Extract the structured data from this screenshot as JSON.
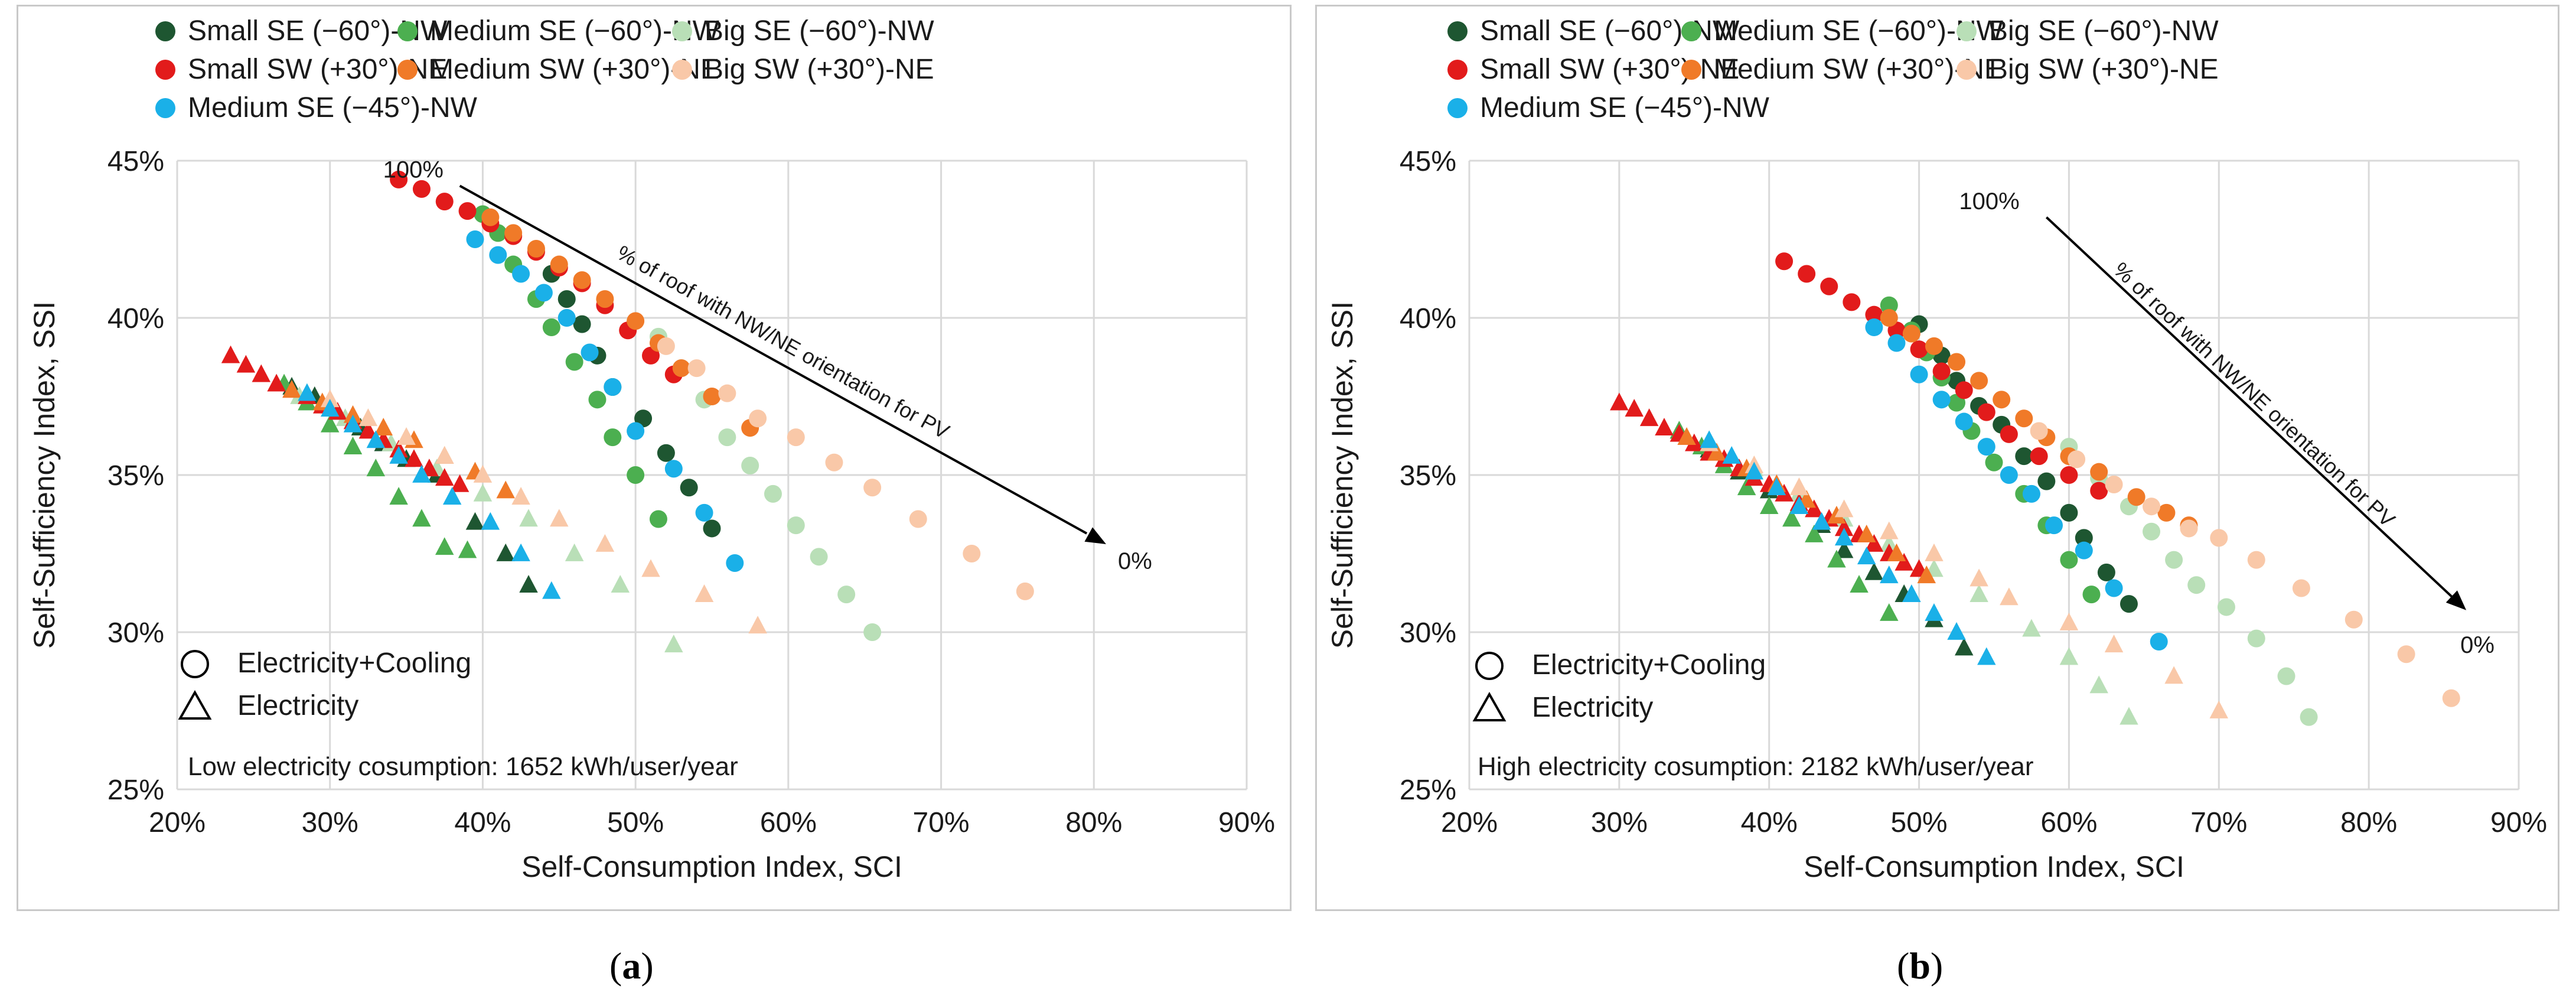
{
  "colors": {
    "small_se_60": "#1e5631",
    "medium_se_60": "#4caf50",
    "big_se_60": "#b9dfb7",
    "small_sw_30": "#e21b1b",
    "medium_sw_30": "#f07a28",
    "big_sw_30": "#f9c8a8",
    "medium_se_45": "#1ab0e8",
    "grid": "#d9d9d9",
    "text": "#1a1a1a"
  },
  "legend_items": [
    {
      "key": "small_se_60",
      "label": "Small SE (−60°)-NW"
    },
    {
      "key": "medium_se_60",
      "label": "Medium SE (−60°)-NW"
    },
    {
      "key": "big_se_60",
      "label": "Big SE (−60°)-NW"
    },
    {
      "key": "small_sw_30",
      "label": "Small SW (+30°)-NE"
    },
    {
      "key": "medium_sw_30",
      "label": "Medium SW (+30°)-NE"
    },
    {
      "key": "big_sw_30",
      "label": "Big SW (+30°)-NE"
    },
    {
      "key": "medium_se_45",
      "label": "Medium SE (−45°)-NW"
    }
  ],
  "marker_legend": [
    {
      "shape": "circle",
      "label": "Electricity+Cooling"
    },
    {
      "shape": "triangle",
      "label": "Electricity"
    }
  ],
  "chart_data": [
    {
      "type": "scatter",
      "id": "a",
      "caption": "a",
      "xlabel": "Self-Consumption Index, SCI",
      "ylabel": "Self-Sufficiency Index, SSI",
      "xlim": [
        20,
        90
      ],
      "ylim": [
        25,
        45
      ],
      "xticks": [
        20,
        30,
        40,
        50,
        60,
        70,
        80,
        90
      ],
      "yticks": [
        25,
        30,
        35,
        40,
        45
      ],
      "x_tick_labels": [
        "20%",
        "30%",
        "40%",
        "50%",
        "60%",
        "70%",
        "80%",
        "90%"
      ],
      "y_tick_labels": [
        "25%",
        "30%",
        "35%",
        "40%",
        "45%"
      ],
      "grid": true,
      "note": "Low electricity cosumption: 1652 kWh/user/year",
      "arrow": {
        "start_label": "100%",
        "end_label": "0%",
        "text": "% of roof with NW/NE orientation for PV",
        "start": [
          38.5,
          44.2
        ],
        "end": [
          80.8,
          32.8
        ]
      },
      "series": [
        {
          "key": "small_se_60",
          "marker": "circle",
          "x": [
            44.5,
            45.5,
            46.5,
            47.5,
            48.5,
            50.5,
            52,
            53.5,
            55
          ],
          "y": [
            41.4,
            40.6,
            39.8,
            38.8,
            37.8,
            36.8,
            35.7,
            34.6,
            33.3
          ]
        },
        {
          "key": "medium_se_60",
          "marker": "circle",
          "x": [
            40,
            41,
            42,
            43.5,
            44.5,
            46,
            47.5,
            48.5,
            50,
            51.5
          ],
          "y": [
            43.3,
            42.7,
            41.7,
            40.6,
            39.7,
            38.6,
            37.4,
            36.2,
            35,
            33.6
          ]
        },
        {
          "key": "big_se_60",
          "marker": "circle",
          "x": [
            51.5,
            53,
            54.5,
            56,
            57.5,
            59,
            60.5,
            62,
            63.8,
            65.5
          ],
          "y": [
            39.4,
            38.4,
            37.4,
            36.2,
            35.3,
            34.4,
            33.4,
            32.4,
            31.2,
            30
          ]
        },
        {
          "key": "small_sw_30",
          "marker": "circle",
          "x": [
            34.5,
            36,
            37.5,
            39,
            40.5,
            42,
            43.5,
            45,
            46.5,
            48,
            49.5,
            51,
            52.5
          ],
          "y": [
            44.4,
            44.1,
            43.7,
            43.4,
            43,
            42.6,
            42.1,
            41.6,
            41.1,
            40.4,
            39.6,
            38.8,
            38.2
          ]
        },
        {
          "key": "medium_sw_30",
          "marker": "circle",
          "x": [
            40.5,
            42,
            43.5,
            45,
            46.5,
            48,
            50,
            51.5,
            53,
            55,
            57.5
          ],
          "y": [
            43.2,
            42.7,
            42.2,
            41.7,
            41.2,
            40.6,
            39.9,
            39.2,
            38.4,
            37.5,
            36.5
          ]
        },
        {
          "key": "big_sw_30",
          "marker": "circle",
          "x": [
            52,
            54,
            56,
            58,
            60.5,
            63,
            65.5,
            68.5,
            72,
            75.5
          ],
          "y": [
            39.1,
            38.4,
            37.6,
            36.8,
            36.2,
            35.4,
            34.6,
            33.6,
            32.5,
            31.3
          ]
        },
        {
          "key": "medium_se_45",
          "marker": "circle",
          "x": [
            39.5,
            41,
            42.5,
            44,
            45.5,
            47,
            48.5,
            50,
            52.5,
            54.5,
            56.5
          ],
          "y": [
            42.5,
            42,
            41.4,
            40.8,
            40,
            38.9,
            37.8,
            36.4,
            35.2,
            33.8,
            32.2
          ]
        },
        {
          "key": "small_se_60",
          "marker": "triangle",
          "x": [
            27.5,
            29,
            30.5,
            32,
            33.5,
            35,
            37,
            39.5,
            41.5,
            43
          ],
          "y": [
            37.8,
            37.5,
            37,
            36.5,
            36,
            35.5,
            35,
            33.5,
            32.5,
            31.5
          ]
        },
        {
          "key": "medium_se_60",
          "marker": "triangle",
          "x": [
            27,
            28.5,
            30,
            31.5,
            33,
            34.5,
            36,
            37.5,
            39
          ],
          "y": [
            37.9,
            37.3,
            36.6,
            35.9,
            35.2,
            34.3,
            33.6,
            32.7,
            32.6
          ]
        },
        {
          "key": "big_se_60",
          "marker": "triangle",
          "x": [
            28,
            31,
            34,
            37,
            40,
            43,
            46,
            49,
            52.5
          ],
          "y": [
            37.5,
            36.8,
            36,
            35.2,
            34.4,
            33.6,
            32.5,
            31.5,
            29.6
          ]
        },
        {
          "key": "small_sw_30",
          "marker": "triangle",
          "x": [
            23.5,
            24.5,
            25.5,
            26.5,
            27.5,
            28.5,
            29.5,
            30.5,
            31.5,
            32.5,
            33.5,
            34.5,
            35.5,
            36.5,
            37.5,
            38.5
          ],
          "y": [
            38.8,
            38.5,
            38.2,
            37.9,
            37.7,
            37.5,
            37.2,
            37,
            36.7,
            36.4,
            36.1,
            35.8,
            35.5,
            35.2,
            34.9,
            34.7
          ]
        },
        {
          "key": "medium_sw_30",
          "marker": "triangle",
          "x": [
            27.5,
            29.5,
            31.5,
            33.5,
            35.5,
            37.5,
            39.5,
            41.5
          ],
          "y": [
            37.7,
            37.3,
            36.9,
            36.5,
            36.1,
            35.6,
            35.1,
            34.5
          ]
        },
        {
          "key": "big_sw_30",
          "marker": "triangle",
          "x": [
            30,
            32.5,
            35,
            37.5,
            40,
            42.5,
            45,
            48,
            51,
            54.5,
            58
          ],
          "y": [
            37.4,
            36.8,
            36.2,
            35.6,
            35,
            34.3,
            33.6,
            32.8,
            32,
            31.2,
            30.2
          ]
        },
        {
          "key": "medium_se_45",
          "marker": "triangle",
          "x": [
            28.5,
            30,
            31.5,
            33,
            34.5,
            36,
            38,
            40.5,
            42.5,
            44.5
          ],
          "y": [
            37.6,
            37.1,
            36.6,
            36.1,
            35.6,
            35,
            34.3,
            33.5,
            32.5,
            31.3
          ]
        }
      ]
    },
    {
      "type": "scatter",
      "id": "b",
      "caption": "b",
      "xlabel": "Self-Consumption Index, SCI",
      "ylabel": "Self-Sufficiency Index, SSI",
      "xlim": [
        20,
        90
      ],
      "ylim": [
        25,
        45
      ],
      "xticks": [
        20,
        30,
        40,
        50,
        60,
        70,
        80,
        90
      ],
      "yticks": [
        25,
        30,
        35,
        40,
        45
      ],
      "x_tick_labels": [
        "20%",
        "30%",
        "40%",
        "50%",
        "60%",
        "70%",
        "80%",
        "90%"
      ],
      "y_tick_labels": [
        "25%",
        "30%",
        "35%",
        "40%",
        "45%"
      ],
      "grid": true,
      "note": "High electricity cosumption: 2182 kWh/user/year",
      "arrow": {
        "start_label": "100%",
        "end_label": "0%",
        "text": "% of roof with NW/NE orientation for PV",
        "start": [
          58.5,
          43.2
        ],
        "end": [
          86.5,
          30.7
        ]
      },
      "series": [
        {
          "key": "small_se_60",
          "marker": "circle",
          "x": [
            50,
            51.5,
            52.5,
            54,
            55.5,
            57,
            58.5,
            60,
            61,
            62.5,
            64
          ],
          "y": [
            39.8,
            38.8,
            38,
            37.2,
            36.6,
            35.6,
            34.8,
            33.8,
            33,
            31.9,
            30.9
          ]
        },
        {
          "key": "medium_se_60",
          "marker": "circle",
          "x": [
            48,
            49.5,
            50.5,
            51.5,
            52.5,
            53.5,
            55,
            57,
            58.5,
            60,
            61.5
          ],
          "y": [
            40.4,
            39.6,
            38.9,
            38.1,
            37.3,
            36.4,
            35.4,
            34.4,
            33.4,
            32.3,
            31.2
          ]
        },
        {
          "key": "big_se_60",
          "marker": "circle",
          "x": [
            60,
            62,
            64,
            65.5,
            67,
            68.5,
            70.5,
            72.5,
            74.5,
            76
          ],
          "y": [
            35.9,
            34.9,
            34,
            33.2,
            32.3,
            31.5,
            30.8,
            29.8,
            28.6,
            27.3
          ]
        },
        {
          "key": "small_sw_30",
          "marker": "circle",
          "x": [
            41,
            42.5,
            44,
            45.5,
            47,
            48.5,
            50,
            51.5,
            53,
            54.5,
            56,
            58,
            60,
            62
          ],
          "y": [
            41.8,
            41.4,
            41,
            40.5,
            40.1,
            39.6,
            39,
            38.3,
            37.7,
            37,
            36.3,
            35.6,
            35,
            34.5
          ]
        },
        {
          "key": "medium_sw_30",
          "marker": "circle",
          "x": [
            48,
            49.5,
            51,
            52.5,
            54,
            55.5,
            57,
            58.5,
            60,
            62,
            64.5,
            66.5,
            68
          ],
          "y": [
            40,
            39.5,
            39.1,
            38.6,
            38,
            37.4,
            36.8,
            36.2,
            35.6,
            35.1,
            34.3,
            33.8,
            33.4
          ]
        },
        {
          "key": "big_sw_30",
          "marker": "circle",
          "x": [
            58,
            60.5,
            63,
            65.5,
            68,
            70,
            72.5,
            75.5,
            79,
            82.5,
            85.5
          ],
          "y": [
            36.4,
            35.5,
            34.7,
            34,
            33.3,
            33,
            32.3,
            31.4,
            30.4,
            29.3,
            27.9
          ]
        },
        {
          "key": "medium_se_45",
          "marker": "circle",
          "x": [
            47,
            48.5,
            50,
            51.5,
            53,
            54.5,
            56,
            57.5,
            59,
            61,
            63,
            66
          ],
          "y": [
            39.7,
            39.2,
            38.2,
            37.4,
            36.7,
            35.9,
            35,
            34.4,
            33.4,
            32.6,
            31.4,
            29.7
          ]
        },
        {
          "key": "small_se_60",
          "marker": "triangle",
          "x": [
            34,
            36,
            38,
            40,
            42,
            43.5,
            45,
            47,
            49,
            51,
            53
          ],
          "y": [
            36.4,
            35.8,
            35.1,
            34.5,
            34,
            33.4,
            32.6,
            31.9,
            31.2,
            30.4,
            29.5
          ]
        },
        {
          "key": "medium_se_60",
          "marker": "triangle",
          "x": [
            34,
            35.5,
            37,
            38.5,
            40,
            41.5,
            43,
            44.5,
            46,
            48
          ],
          "y": [
            36.4,
            35.9,
            35.3,
            34.6,
            34,
            33.6,
            33.1,
            32.3,
            31.5,
            30.6
          ]
        },
        {
          "key": "big_se_60",
          "marker": "triangle",
          "x": [
            36,
            39,
            42,
            45,
            48,
            51,
            54,
            57.5,
            60,
            62,
            64
          ],
          "y": [
            36,
            35.2,
            34.4,
            33.6,
            32.8,
            32,
            31.2,
            30.1,
            29.2,
            28.3,
            27.3
          ]
        },
        {
          "key": "small_sw_30",
          "marker": "triangle",
          "x": [
            30,
            31,
            32,
            33,
            34,
            35,
            36,
            37,
            38,
            39,
            40,
            41,
            42,
            43,
            44,
            45,
            46,
            47,
            48,
            49,
            50
          ],
          "y": [
            37.3,
            37.1,
            36.8,
            36.5,
            36.3,
            36,
            35.7,
            35.5,
            35.2,
            34.9,
            34.7,
            34.4,
            34.1,
            33.9,
            33.6,
            33.3,
            33.1,
            32.8,
            32.5,
            32.2,
            32
          ]
        },
        {
          "key": "medium_sw_30",
          "marker": "triangle",
          "x": [
            34.5,
            36.5,
            38.5,
            40.5,
            42.5,
            44.5,
            46.5,
            48.5,
            50.5
          ],
          "y": [
            36.2,
            35.7,
            35.2,
            34.7,
            34.2,
            33.7,
            33.1,
            32.5,
            31.8
          ]
        },
        {
          "key": "big_sw_30",
          "marker": "triangle",
          "x": [
            36,
            39,
            42,
            45,
            48,
            51,
            54,
            56,
            60,
            63,
            67,
            70
          ],
          "y": [
            36,
            35.3,
            34.6,
            33.9,
            33.2,
            32.5,
            31.7,
            31.1,
            30.3,
            29.6,
            28.6,
            27.5
          ]
        },
        {
          "key": "medium_se_45",
          "marker": "triangle",
          "x": [
            36,
            37.5,
            39,
            40.5,
            42,
            43.5,
            45,
            46.5,
            48,
            49.5,
            51,
            52.5,
            54.5
          ],
          "y": [
            36.1,
            35.6,
            35.1,
            34.6,
            34,
            33.5,
            33,
            32.4,
            31.8,
            31.2,
            30.6,
            30,
            29.2
          ]
        }
      ]
    }
  ]
}
